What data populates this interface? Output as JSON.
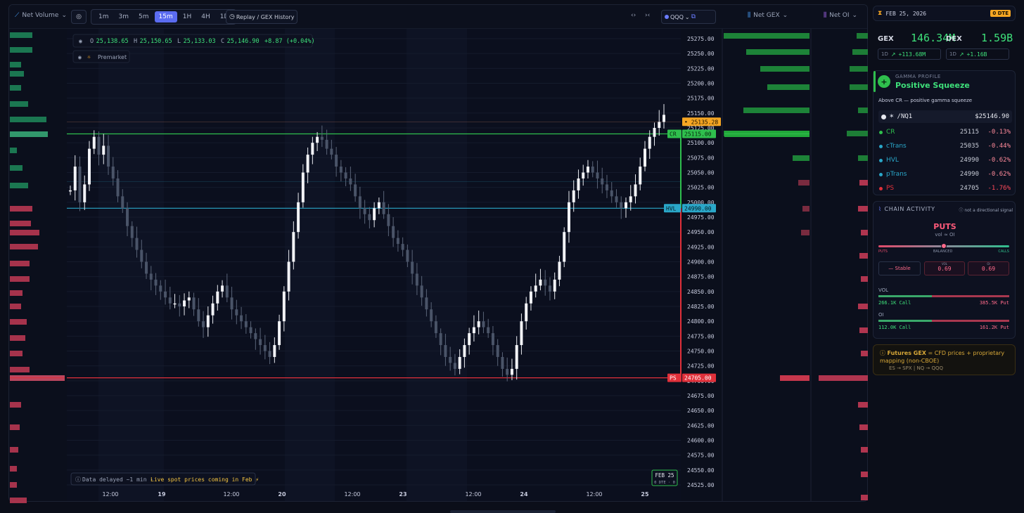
{
  "toolbar": {
    "indicator": "Net Volume",
    "timeframes": [
      "1m",
      "3m",
      "5m",
      "15m",
      "1H",
      "4H",
      "1D"
    ],
    "active_timeframe": "15m",
    "replay": "Replay / GEX History",
    "symbol": "QQQ",
    "net_gex": "Net GEX",
    "net_oi": "Net OI"
  },
  "ohlc": {
    "o_label": "O",
    "o": "25,138.65",
    "h_label": "H",
    "h": "25,150.65",
    "l_label": "L",
    "l": "25,133.03",
    "c_label": "C",
    "c": "25,146.90",
    "change": "+8.87 (+0.04%)"
  },
  "premarket": "Premarket",
  "price_axis": [
    "25275.00",
    "25250.00",
    "25225.00",
    "25200.00",
    "25175.00",
    "25150.00",
    "25125.00",
    "25100.00",
    "25075.00",
    "25050.00",
    "25025.00",
    "25000.00",
    "24975.00",
    "24950.00",
    "24925.00",
    "24900.00",
    "24875.00",
    "24850.00",
    "24825.00",
    "24800.00",
    "24775.00",
    "24750.00",
    "24725.00",
    "24700.00",
    "24675.00",
    "24650.00",
    "24625.00",
    "24600.00",
    "24575.00",
    "24550.00",
    "24525.00"
  ],
  "time_axis": [
    "12:00",
    "19",
    "12:00",
    "20",
    "12:00",
    "23",
    "12:00",
    "24",
    "12:00",
    "25"
  ],
  "levels": {
    "current": "25135.28",
    "current_icon": "•",
    "cr_tag": "CR",
    "cr": "25115.00",
    "hvl_tag": "HVL",
    "hvl": "24990.00",
    "ps_tag": "PS",
    "ps": "24705.00",
    "current_color": "#f5a623",
    "cr_color": "#2fbf4d",
    "hvl_color": "#2aa7c9",
    "ps_color": "#e0303a"
  },
  "notice": "Data delayed ~1 min ·",
  "notice_live": "Live spot prices coming in Feb ⚡",
  "date_badge": {
    "date": "FEB 25",
    "sub": "0 DTE · 0"
  },
  "panel": {
    "date": "FEB 25, 2026",
    "dte_badge": "0 DTE",
    "gex_label": "GEX",
    "gex": "146.34M",
    "dex_label": "DEX",
    "dex": "1.59B",
    "gex_period": "1D",
    "gex_change": "+113.68M",
    "dex_period": "1D",
    "dex_change": "+1.16B",
    "gamma_title": "GAMMA PROFILE",
    "gamma_state": "Positive Squeeze",
    "gamma_desc": "Above CR — positive gamma squeeze",
    "instrument": "/NQ1",
    "instrument_price": "$25146.90",
    "levels": [
      {
        "name": "CR",
        "value": "25115",
        "pct": "-0.13%",
        "color": "#2fbf4d"
      },
      {
        "name": "cTrans",
        "value": "25035",
        "pct": "-0.44%",
        "color": "#2aa7c9"
      },
      {
        "name": "HVL",
        "value": "24990",
        "pct": "-0.62%",
        "color": "#2aa7c9"
      },
      {
        "name": "pTrans",
        "value": "24990",
        "pct": "-0.62%",
        "color": "#2aa7c9"
      },
      {
        "name": "PS",
        "value": "24705",
        "pct": "-1.76%",
        "color": "#e0303a"
      }
    ],
    "chain_title": "CHAIN ACTIVITY",
    "chain_note": "not a directional signal",
    "chain_state": "PUTS",
    "chain_sub": "vol ≈ OI",
    "gauge_left": "PUTS",
    "gauge_mid": "BALANCED",
    "gauge_right": "CALLS",
    "stable": "— Stable",
    "vol_box_label": "VOL",
    "vol_box": "0.69",
    "oi_box_label": "OI",
    "oi_box": "0.69",
    "vol_label": "VOL",
    "vol_call": "266.1K Call",
    "vol_put": "385.5K Put",
    "oi_label": "OI",
    "oi_call": "112.0K Call",
    "oi_put": "161.2K Put",
    "futures_title": "Futures GEX",
    "futures_desc": "= CFD prices + proprietary mapping (non-CBOE)",
    "futures_map": "ES → SPX | NQ → QQQ"
  },
  "chart_data": {
    "type": "candlestick",
    "series": [
      25020,
      25060,
      25000,
      25030,
      25090,
      25110,
      25080,
      25095,
      25060,
      25040,
      25010,
      24990,
      24960,
      24940,
      24920,
      24900,
      24880,
      24870,
      24860,
      24850,
      24840,
      24830,
      24830,
      24825,
      24835,
      24840,
      24820,
      24800,
      24790,
      24810,
      24830,
      24850,
      24860,
      24840,
      24820,
      24810,
      24800,
      24790,
      24780,
      24770,
      24760,
      24750,
      24740,
      24760,
      24800,
      24850,
      24900,
      24950,
      25000,
      25050,
      25080,
      25100,
      25110,
      25105,
      25090,
      25080,
      25060,
      25050,
      25040,
      25030,
      25010,
      24990,
      24980,
      24970,
      24990,
      25000,
      24980,
      24960,
      24940,
      24930,
      24920,
      24900,
      24880,
      24860,
      24840,
      24820,
      24800,
      24780,
      24760,
      24740,
      24730,
      24720,
      24740,
      24760,
      24780,
      24790,
      24800,
      24790,
      24780,
      24760,
      24740,
      24720,
      24710,
      24720,
      24760,
      24800,
      24830,
      24850,
      24860,
      24870,
      24860,
      24850,
      24870,
      24900,
      24950,
      25000,
      25020,
      25040,
      25050,
      25060,
      25050,
      25040,
      25030,
      25020,
      25010,
      25000,
      24990,
      25000,
      25010,
      25030,
      25060,
      25090,
      25110,
      25125,
      25135,
      25147
    ],
    "levels": {
      "CR": 25115,
      "HVL": 24990,
      "PS": 24705,
      "current": 25135.28
    },
    "ylim": [
      24525,
      25275
    ]
  }
}
